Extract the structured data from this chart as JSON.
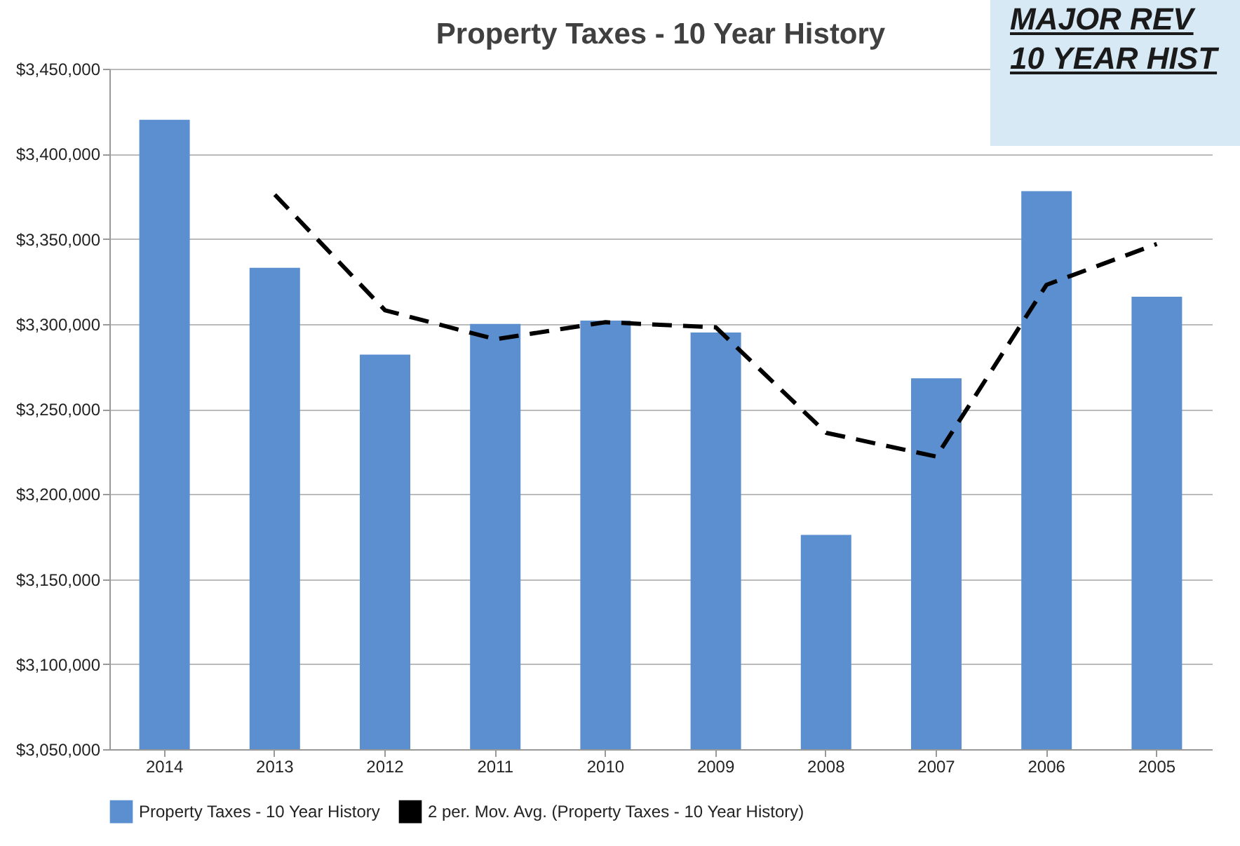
{
  "chart_data": {
    "type": "bar",
    "title": "Property Taxes - 10 Year History",
    "categories": [
      "2014",
      "2013",
      "2012",
      "2011",
      "2010",
      "2009",
      "2008",
      "2007",
      "2006",
      "2005"
    ],
    "series": [
      {
        "name": "Property Taxes - 10 Year History",
        "color": "#5b8fd0",
        "values": [
          3420000,
          3333000,
          3282000,
          3300000,
          3302000,
          3295000,
          3176000,
          3268000,
          3378000,
          3316000
        ]
      },
      {
        "name": "2 per. Mov. Avg. (Property Taxes - 10 Year History)",
        "type": "line",
        "color": "#000000",
        "line_style": "dashed",
        "values": [
          null,
          3376000,
          3308000,
          3291000,
          3301000,
          3298000,
          3236000,
          3222000,
          3323000,
          3347000
        ]
      }
    ],
    "ylim": [
      3050000,
      3450000
    ],
    "yticks": [
      {
        "value": 3050000,
        "label": "$3,050,000"
      },
      {
        "value": 3100000,
        "label": "$3,100,000"
      },
      {
        "value": 3150000,
        "label": "$3,150,000"
      },
      {
        "value": 3200000,
        "label": "$3,200,000"
      },
      {
        "value": 3250000,
        "label": "$3,250,000"
      },
      {
        "value": 3300000,
        "label": "$3,300,000"
      },
      {
        "value": 3350000,
        "label": "$3,350,000"
      },
      {
        "value": 3400000,
        "label": "$3,400,000"
      },
      {
        "value": 3450000,
        "label": "$3,450,000"
      }
    ],
    "grid": "y",
    "legend": "bottom",
    "annotations": [
      "MAJOR REV",
      "10 YEAR HIST"
    ]
  }
}
